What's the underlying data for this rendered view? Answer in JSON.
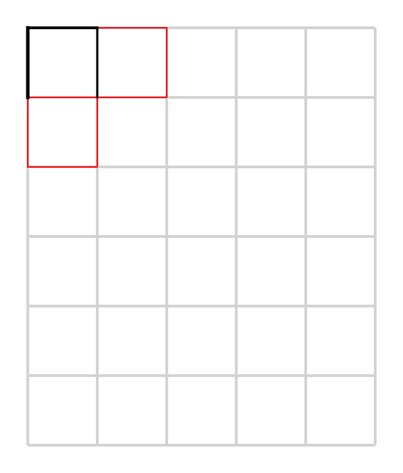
{
  "grid": {
    "rows": 6,
    "cols": 5,
    "line_color": "#d3d3d3",
    "background": "#ffffff"
  },
  "path": {
    "color": "#000000",
    "segments": [
      {
        "from": [
          0,
          1
        ],
        "to": [
          0,
          0
        ]
      },
      {
        "from": [
          0,
          0
        ],
        "to": [
          1,
          0
        ]
      },
      {
        "from": [
          1,
          0
        ],
        "to": [
          1,
          1
        ]
      }
    ]
  },
  "highlighted_cells": {
    "color": "#ff0000",
    "cells": [
      {
        "row": 0,
        "col": 1
      },
      {
        "row": 1,
        "col": 0
      }
    ]
  }
}
